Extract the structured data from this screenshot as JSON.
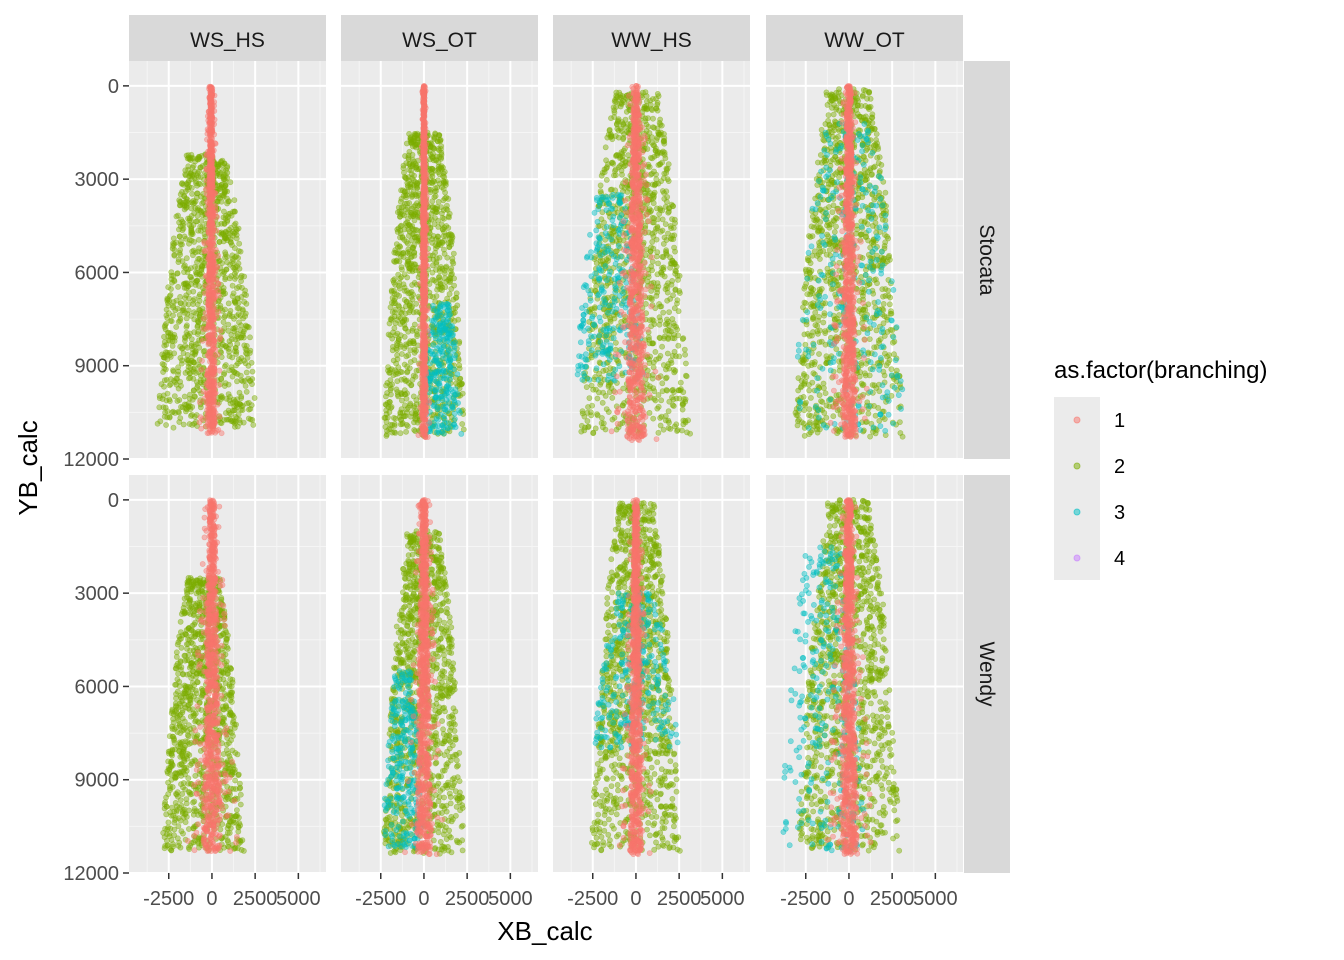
{
  "chart_data": {
    "type": "scatter",
    "facet_cols": [
      "WS_HS",
      "WS_OT",
      "WW_HS",
      "WW_OT"
    ],
    "facet_rows": [
      "Stocata",
      "Wendy"
    ],
    "xlabel": "XB_calc",
    "ylabel": "YB_calc",
    "x_ticks": [
      -2500,
      0,
      2500,
      5000
    ],
    "x_tick_labels": [
      "-2500",
      "0",
      "2500",
      "5000"
    ],
    "xlim": [
      -4800,
      6600
    ],
    "y_ticks": [
      0,
      3000,
      6000,
      9000,
      12000
    ],
    "y_tick_labels": [
      "0",
      "3000",
      "6000",
      "9000",
      "12000"
    ],
    "ylim": [
      12000,
      -800
    ],
    "y_reversed": true,
    "grid": true,
    "legend": {
      "title": "as.factor(branching)",
      "placement": "right",
      "entries": [
        {
          "label": "1",
          "color": "#F8766D"
        },
        {
          "label": "2",
          "color": "#7CAE00"
        },
        {
          "label": "3",
          "color": "#00BFC4"
        },
        {
          "label": "4",
          "color": "#C77CFF"
        }
      ]
    },
    "panels": [
      {
        "col": "WS_HS",
        "row": "Stocata",
        "series": [
          {
            "name": "1",
            "x_center": -50,
            "x_halfwidth": 700,
            "y_min": 0,
            "y_max": 11200
          },
          {
            "name": "2",
            "x_center": -300,
            "x_halfwidth": 2900,
            "y_min": 2200,
            "y_max": 11000
          }
        ]
      },
      {
        "col": "WS_OT",
        "row": "Stocata",
        "series": [
          {
            "name": "1",
            "x_center": 0,
            "x_halfwidth": 350,
            "y_min": 0,
            "y_max": 11300
          },
          {
            "name": "2",
            "x_center": 0,
            "x_halfwidth": 2400,
            "y_min": 1500,
            "y_max": 11300
          },
          {
            "name": "3",
            "x_center": 1000,
            "x_halfwidth": 1200,
            "y_min": 7000,
            "y_max": 11200
          }
        ]
      },
      {
        "col": "WW_HS",
        "row": "Stocata",
        "series": [
          {
            "name": "1",
            "x_center": 0,
            "x_halfwidth": 1500,
            "y_min": 0,
            "y_max": 11400
          },
          {
            "name": "2",
            "x_center": 0,
            "x_halfwidth": 3200,
            "y_min": 200,
            "y_max": 11200
          },
          {
            "name": "3",
            "x_center": -1500,
            "x_halfwidth": 2000,
            "y_min": 3500,
            "y_max": 9500
          }
        ]
      },
      {
        "col": "WW_OT",
        "row": "Stocata",
        "series": [
          {
            "name": "1",
            "x_center": 0,
            "x_halfwidth": 1200,
            "y_min": 0,
            "y_max": 11300
          },
          {
            "name": "2",
            "x_center": 0,
            "x_halfwidth": 3200,
            "y_min": 100,
            "y_max": 11300
          },
          {
            "name": "3",
            "x_center": 0,
            "x_halfwidth": 3300,
            "y_min": 1200,
            "y_max": 11100
          }
        ]
      },
      {
        "col": "WS_HS",
        "row": "Wendy",
        "series": [
          {
            "name": "1",
            "x_center": 0,
            "x_halfwidth": 1500,
            "y_min": 0,
            "y_max": 11300
          },
          {
            "name": "2",
            "x_center": -500,
            "x_halfwidth": 2400,
            "y_min": 2500,
            "y_max": 11300
          }
        ]
      },
      {
        "col": "WS_OT",
        "row": "Wendy",
        "series": [
          {
            "name": "1",
            "x_center": 0,
            "x_halfwidth": 1200,
            "y_min": 0,
            "y_max": 11400
          },
          {
            "name": "2",
            "x_center": 0,
            "x_halfwidth": 2400,
            "y_min": 1000,
            "y_max": 11400
          },
          {
            "name": "3",
            "x_center": -1200,
            "x_halfwidth": 1200,
            "y_min": 5500,
            "y_max": 11200
          }
        ]
      },
      {
        "col": "WW_HS",
        "row": "Wendy",
        "series": [
          {
            "name": "1",
            "x_center": 0,
            "x_halfwidth": 1000,
            "y_min": 0,
            "y_max": 11400
          },
          {
            "name": "2",
            "x_center": 0,
            "x_halfwidth": 2600,
            "y_min": 100,
            "y_max": 11300
          },
          {
            "name": "3",
            "x_center": 0,
            "x_halfwidth": 2500,
            "y_min": 3000,
            "y_max": 8000
          }
        ]
      },
      {
        "col": "WW_OT",
        "row": "Wendy",
        "series": [
          {
            "name": "1",
            "x_center": 0,
            "x_halfwidth": 1400,
            "y_min": 0,
            "y_max": 11400
          },
          {
            "name": "2",
            "x_center": 0,
            "x_halfwidth": 3000,
            "y_min": 0,
            "y_max": 11300
          },
          {
            "name": "3",
            "x_center": -1500,
            "x_halfwidth": 2500,
            "y_min": 1500,
            "y_max": 11300
          }
        ]
      }
    ]
  }
}
